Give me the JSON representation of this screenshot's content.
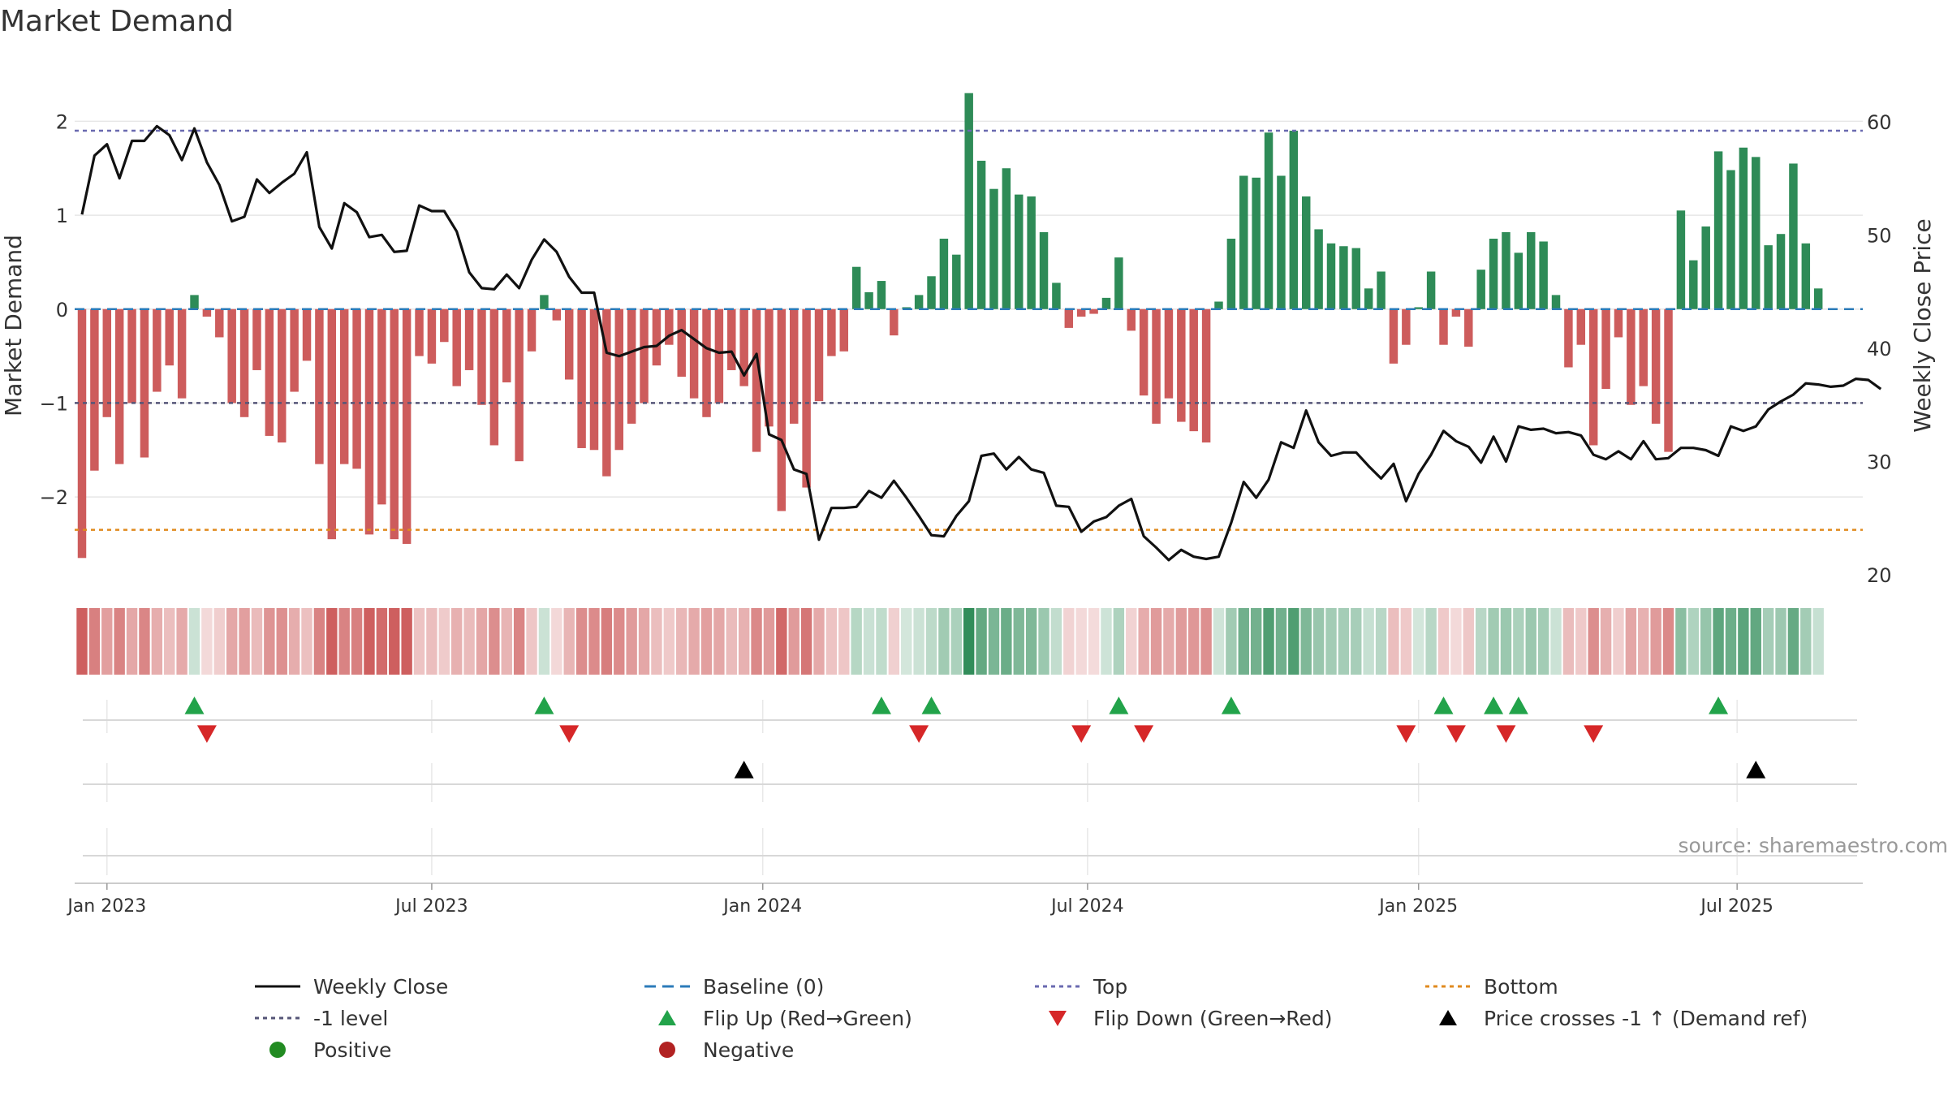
{
  "colors": {
    "green": "#2e8b57",
    "red": "#cd5c5c",
    "price": "#111111",
    "top": "#6a6ab0",
    "bottom": "#e08a1e",
    "minus1": "#555577",
    "baseline": "#2b7bb9",
    "flipUp": "#22a34a",
    "flipDown": "#d62728",
    "cross": "#000000",
    "positive": "#228b22",
    "negative": "#b22222",
    "grid": "#e6e6e6"
  },
  "chart_data": {
    "type": "bar",
    "title": "Market Demand",
    "ylabel": "Market Demand",
    "y2label": "Weekly Close Price",
    "ylim": [
      -2.95,
      2.6
    ],
    "y2lim": [
      19,
      65
    ],
    "yticks": [
      "2",
      "1",
      "0",
      "−1",
      "−2"
    ],
    "yticks_values": [
      2,
      1,
      0,
      -1,
      -2
    ],
    "y2ticks": [
      "60",
      "50",
      "40",
      "30",
      "20"
    ],
    "y2ticks_values": [
      60,
      50,
      40,
      30,
      20
    ],
    "xticks": [
      "Jan 2023",
      "Jul 2023",
      "Jan 2024",
      "Jul 2024",
      "Jan 2025",
      "Jul 2025"
    ],
    "xticks_week_index": [
      2,
      28,
      54.5,
      80.5,
      107,
      132.5
    ],
    "levels": {
      "top": 1.9,
      "bottom": -2.35,
      "minus1": -1.0,
      "baseline": 0
    },
    "demand": [
      -2.65,
      -1.72,
      -1.15,
      -1.65,
      -1.0,
      -1.58,
      -0.88,
      -0.6,
      -0.95,
      0.15,
      -0.08,
      -0.3,
      -1.0,
      -1.15,
      -0.65,
      -1.35,
      -1.42,
      -0.88,
      -0.55,
      -1.65,
      -2.45,
      -1.65,
      -1.7,
      -2.4,
      -2.08,
      -2.45,
      -2.5,
      -0.5,
      -0.58,
      -0.35,
      -0.82,
      -0.65,
      -1.02,
      -1.45,
      -0.78,
      -1.62,
      -0.45,
      0.15,
      -0.12,
      -0.75,
      -1.48,
      -1.5,
      -1.78,
      -1.5,
      -1.22,
      -1.0,
      -0.6,
      -0.38,
      -0.72,
      -0.95,
      -1.15,
      -1.0,
      -0.65,
      -0.82,
      -1.52,
      -1.25,
      -2.15,
      -1.22,
      -1.9,
      -0.98,
      -0.5,
      -0.45,
      0.45,
      0.18,
      0.3,
      -0.28,
      0.02,
      0.15,
      0.35,
      0.75,
      0.58,
      2.3,
      1.58,
      1.28,
      1.5,
      1.22,
      1.2,
      0.82,
      0.28,
      -0.2,
      -0.08,
      -0.05,
      0.12,
      0.55,
      -0.23,
      -0.92,
      -1.22,
      -0.95,
      -1.2,
      -1.3,
      -1.42,
      0.08,
      0.75,
      1.42,
      1.4,
      1.88,
      1.42,
      1.9,
      1.2,
      0.85,
      0.7,
      0.67,
      0.65,
      0.22,
      0.4,
      -0.58,
      -0.38,
      0.02,
      0.4,
      -0.38,
      -0.08,
      -0.4,
      0.42,
      0.75,
      0.82,
      0.6,
      0.82,
      0.72,
      0.15,
      -0.62,
      -0.38,
      -1.45,
      -0.85,
      -0.3,
      -1.02,
      -0.82,
      -1.22,
      -1.52,
      1.05,
      0.52,
      0.88,
      1.68,
      1.48,
      1.72,
      1.62,
      0.68,
      0.8,
      1.55,
      0.7,
      0.22
    ],
    "price": [
      51.8,
      57,
      58,
      55,
      58.3,
      58.3,
      59.6,
      58.8,
      56.6,
      59.4,
      56.4,
      54.4,
      51.2,
      51.6,
      54.9,
      53.7,
      54.6,
      55.4,
      57.3,
      50.7,
      48.8,
      52.8,
      52,
      49.8,
      50,
      48.5,
      48.6,
      52.6,
      52.1,
      52.1,
      50.3,
      46.7,
      45.3,
      45.2,
      46.5,
      45.3,
      47.8,
      49.6,
      48.5,
      46.3,
      44.9,
      44.9,
      39.6,
      39.3,
      39.7,
      40.1,
      40.2,
      41.1,
      41.6,
      40.8,
      40,
      39.6,
      39.7,
      37.6,
      39.5,
      32.4,
      31.9,
      29.3,
      28.9,
      23.1,
      25.9,
      25.9,
      26,
      27.4,
      26.8,
      28.3,
      26.8,
      25.2,
      23.5,
      23.4,
      25.2,
      26.5,
      30.5,
      30.7,
      29.3,
      30.4,
      29.3,
      29,
      26.1,
      26,
      23.8,
      24.7,
      25.1,
      26.1,
      26.7,
      23.4,
      22.4,
      21.3,
      22.2,
      21.6,
      21.4,
      21.6,
      24.6,
      28.2,
      26.8,
      28.4,
      31.7,
      31.2,
      34.5,
      31.7,
      30.5,
      30.8,
      30.8,
      29.6,
      28.5,
      29.8,
      26.5,
      28.9,
      30.6,
      32.7,
      31.8,
      31.3,
      29.9,
      32.2,
      30,
      33.1,
      32.8,
      32.9,
      32.5,
      32.6,
      32.3,
      30.6,
      30.2,
      30.9,
      30.2,
      31.8,
      30.2,
      30.3,
      31.2,
      31.2,
      31,
      30.5,
      33.1,
      32.7,
      33.1,
      34.6,
      35.3,
      35.9,
      36.9,
      36.8,
      36.6,
      36.7,
      37.3,
      37.2,
      36.4
    ],
    "flip_up_week_index": [
      9,
      37,
      64,
      68,
      83,
      92,
      109,
      113,
      115,
      131
    ],
    "flip_down_week_index": [
      10,
      39,
      67,
      80,
      85,
      106,
      110,
      114,
      121
    ],
    "cross_week_index": [
      53,
      134
    ]
  },
  "source": "source: sharemaestro.com",
  "legend": [
    {
      "label": "Weekly Close",
      "symbol": "line-solid",
      "color": "#111111"
    },
    {
      "label": "Baseline (0)",
      "symbol": "line-dash",
      "color": "#2b7bb9"
    },
    {
      "label": "Top",
      "symbol": "line-dot",
      "color": "#6a6ab0"
    },
    {
      "label": "Bottom",
      "symbol": "line-dot",
      "color": "#e08a1e"
    },
    {
      "label": "-1 level",
      "symbol": "line-dot",
      "color": "#555577"
    },
    {
      "label": "Flip Up (Red→Green)",
      "symbol": "tri-up",
      "color": "#22a34a"
    },
    {
      "label": "Flip Down (Green→Red)",
      "symbol": "tri-down",
      "color": "#d62728"
    },
    {
      "label": "Price crosses -1 ↑ (Demand ref)",
      "symbol": "tri-up",
      "color": "#000000"
    },
    {
      "label": "Positive",
      "symbol": "dot",
      "color": "#228b22"
    },
    {
      "label": "Negative",
      "symbol": "dot",
      "color": "#b22222"
    }
  ]
}
